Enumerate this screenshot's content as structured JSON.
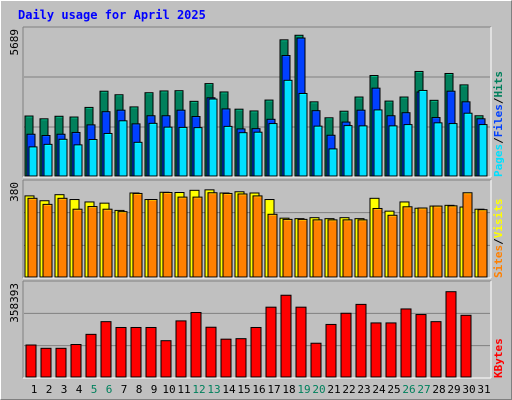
{
  "title": "Daily usage for April 2025",
  "colors": {
    "hits": "#00805c",
    "files": "#0040ff",
    "pages": "#00e0ff",
    "visits": "#ffff00",
    "sites": "#ff8000",
    "kbytes": "#ff0000",
    "title": "#0000ff",
    "weekend": "#00805c"
  },
  "chart_data": [
    {
      "type": "bar",
      "title": "Daily usage for April 2025",
      "categories": [
        "1",
        "2",
        "3",
        "4",
        "5",
        "6",
        "7",
        "8",
        "9",
        "10",
        "11",
        "12",
        "13",
        "14",
        "15",
        "16",
        "17",
        "18",
        "19",
        "20",
        "21",
        "22",
        "23",
        "24",
        "25",
        "26",
        "27",
        "28",
        "29",
        "30",
        "31"
      ],
      "weekend_days": [
        "5",
        "6",
        "12",
        "13",
        "19",
        "20",
        "26",
        "27"
      ],
      "ymax_label": "5689",
      "ylim": [
        0,
        5689
      ],
      "series": [
        {
          "name": "Hits",
          "values": [
            2370,
            2260,
            2360,
            2330,
            2710,
            3350,
            3210,
            2730,
            3290,
            3360,
            3370,
            2950,
            3650,
            3320,
            2640,
            2570,
            3000,
            5380,
            5560,
            2930,
            2300,
            2560,
            3120,
            3970,
            2960,
            3120,
            4130,
            2990,
            4050,
            3600,
            2380
          ]
        },
        {
          "name": "Files",
          "values": [
            1650,
            1600,
            1650,
            1720,
            2020,
            2540,
            2600,
            2060,
            2380,
            2380,
            2600,
            2350,
            3090,
            2650,
            1860,
            1870,
            2240,
            4760,
            5450,
            2580,
            1610,
            2130,
            2600,
            3470,
            2380,
            2500,
            3320,
            2310,
            3350,
            2930,
            2260
          ]
        },
        {
          "name": "Pages",
          "values": [
            1150,
            1250,
            1450,
            1230,
            1440,
            1680,
            2180,
            1330,
            2080,
            1930,
            1920,
            1910,
            3040,
            1960,
            1710,
            1730,
            2070,
            3780,
            3260,
            1970,
            1070,
            1990,
            1980,
            2610,
            1980,
            2030,
            3380,
            2100,
            2070,
            2480,
            2030
          ]
        }
      ]
    },
    {
      "type": "bar",
      "categories": [
        "1",
        "2",
        "3",
        "4",
        "5",
        "6",
        "7",
        "8",
        "9",
        "10",
        "11",
        "12",
        "13",
        "14",
        "15",
        "16",
        "17",
        "18",
        "19",
        "20",
        "21",
        "22",
        "23",
        "24",
        "25",
        "26",
        "27",
        "28",
        "29",
        "30",
        "31"
      ],
      "ymax_label": "380",
      "ylim": [
        0,
        380
      ],
      "series": [
        {
          "name": "Visits",
          "values": [
            335,
            315,
            340,
            320,
            310,
            305,
            275,
            347,
            320,
            350,
            349,
            358,
            360,
            347,
            352,
            347,
            320,
            243,
            241,
            245,
            241,
            245,
            241,
            325,
            272,
            310,
            284,
            293,
            296,
            289,
            280
          ]
        },
        {
          "name": "Sites",
          "values": [
            325,
            300,
            325,
            280,
            291,
            280,
            270,
            345,
            320,
            349,
            330,
            330,
            348,
            345,
            343,
            335,
            259,
            238,
            238,
            236,
            236,
            236,
            236,
            283,
            255,
            290,
            285,
            293,
            294,
            348,
            278
          ]
        }
      ]
    },
    {
      "type": "bar",
      "categories": [
        "1",
        "2",
        "3",
        "4",
        "5",
        "6",
        "7",
        "8",
        "9",
        "10",
        "11",
        "12",
        "13",
        "14",
        "15",
        "16",
        "17",
        "18",
        "19",
        "20",
        "21",
        "22",
        "23",
        "24",
        "25",
        "26",
        "27",
        "28",
        "29",
        "30",
        "31"
      ],
      "ymax_label": "358393",
      "ylim": [
        0,
        358393
      ],
      "series": [
        {
          "name": "KBytes",
          "values": [
            126000,
            113000,
            113000,
            128000,
            168000,
            218000,
            195000,
            195000,
            195000,
            143000,
            221000,
            254000,
            196000,
            149000,
            151000,
            195000,
            275000,
            322000,
            275000,
            133000,
            207000,
            251000,
            286000,
            213000,
            213000,
            268000,
            246000,
            218000,
            336000,
            243000,
            0
          ]
        }
      ]
    }
  ],
  "side_labels": {
    "top": [
      {
        "text": "Pages",
        "color": "#00e0ff"
      },
      {
        "text": "/",
        "color": "#000000"
      },
      {
        "text": "Files",
        "color": "#0040ff"
      },
      {
        "text": "/",
        "color": "#000000"
      },
      {
        "text": "Hits",
        "color": "#00805c"
      }
    ],
    "mid": [
      {
        "text": "Sites",
        "color": "#ff8000"
      },
      {
        "text": "/",
        "color": "#000000"
      },
      {
        "text": "Visits",
        "color": "#ffff00"
      }
    ],
    "bot": [
      {
        "text": "KBytes",
        "color": "#ff0000"
      }
    ]
  }
}
